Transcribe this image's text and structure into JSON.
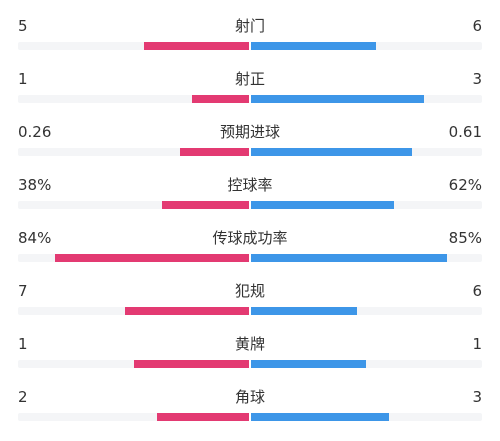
{
  "colors": {
    "home": "#e33a72",
    "away": "#3d96e8",
    "track": "#f4f5f7"
  },
  "stats": [
    {
      "label": "射门",
      "home": "5",
      "away": "6",
      "home_share": 0.455,
      "away_share": 0.545
    },
    {
      "label": "射正",
      "home": "1",
      "away": "3",
      "home_share": 0.25,
      "away_share": 0.75
    },
    {
      "label": "预期进球",
      "home": "0.26",
      "away": "0.61",
      "home_share": 0.3,
      "away_share": 0.7
    },
    {
      "label": "控球率",
      "home": "38%",
      "away": "62%",
      "home_share": 0.38,
      "away_share": 0.62
    },
    {
      "label": "传球成功率",
      "home": "84%",
      "away": "85%",
      "home_share": 0.84,
      "away_share": 0.85
    },
    {
      "label": "犯规",
      "home": "7",
      "away": "6",
      "home_share": 0.54,
      "away_share": 0.46
    },
    {
      "label": "黄牌",
      "home": "1",
      "away": "1",
      "home_share": 0.5,
      "away_share": 0.5
    },
    {
      "label": "角球",
      "home": "2",
      "away": "3",
      "home_share": 0.4,
      "away_share": 0.6
    }
  ]
}
